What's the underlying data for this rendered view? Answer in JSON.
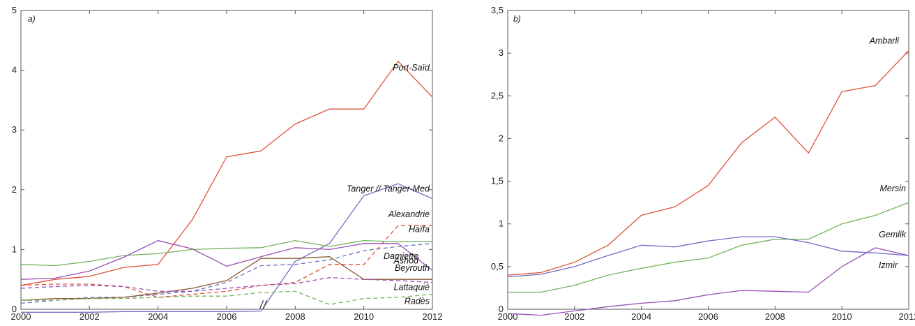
{
  "chart_data": [
    {
      "type": "line",
      "panel_label": "a)",
      "x": [
        2000,
        2001,
        2002,
        2003,
        2004,
        2005,
        2006,
        2007,
        2008,
        2009,
        2010,
        2011,
        2012
      ],
      "xticks": [
        2000,
        2002,
        2004,
        2006,
        2008,
        2010,
        2012
      ],
      "yticks": [
        "0",
        "1",
        "2",
        "3",
        "4",
        "5"
      ],
      "ytick_values": [
        0,
        1,
        2,
        3,
        4,
        5
      ],
      "xlim": [
        2000,
        2012
      ],
      "ylim": [
        0,
        5
      ],
      "series": [
        {
          "name": "Port-Saïd",
          "color": "#e0533a",
          "dash": "solid",
          "values": [
            0.4,
            0.5,
            0.55,
            0.7,
            0.75,
            1.5,
            2.55,
            2.65,
            3.1,
            3.35,
            3.35,
            4.15,
            3.55
          ]
        },
        {
          "name": "Tanger // Tanger-Med",
          "color": "#6f6cc4",
          "dash": "solid",
          "values": [
            -0.05,
            -0.05,
            -0.05,
            -0.04,
            -0.04,
            -0.04,
            -0.04,
            -0.03,
            0.8,
            1.1,
            1.9,
            2.1,
            1.85
          ]
        },
        {
          "name": "Alexandrie",
          "color": "#e0533a",
          "dash": "dashed",
          "values": [
            0.4,
            0.42,
            0.42,
            0.38,
            0.2,
            0.25,
            0.3,
            0.4,
            0.45,
            0.75,
            0.75,
            1.4,
            1.4
          ]
        },
        {
          "name": "Haïfa",
          "color": "#74b35e",
          "dash": "solid",
          "values": [
            0.75,
            0.73,
            0.8,
            0.9,
            0.93,
            1.0,
            1.02,
            1.03,
            1.15,
            1.05,
            1.15,
            1.13,
            1.13
          ]
        },
        {
          "name": "Ashod",
          "color": "#9a4fb4",
          "dash": "solid",
          "values": [
            0.5,
            0.52,
            0.64,
            0.87,
            1.15,
            1.01,
            0.72,
            0.88,
            1.03,
            1.0,
            1.1,
            1.1,
            0.65
          ]
        },
        {
          "name": "Damiette",
          "color": "#6f6cc4",
          "dash": "dashed",
          "values": [
            0.1,
            0.15,
            0.2,
            0.2,
            0.25,
            0.3,
            0.45,
            0.73,
            0.75,
            0.83,
            0.98,
            1.05,
            1.1
          ]
        },
        {
          "name": "Beyrouth",
          "color": "#8a5a32",
          "dash": "solid",
          "values": [
            0.15,
            0.18,
            0.18,
            0.2,
            0.27,
            0.35,
            0.48,
            0.85,
            0.85,
            0.88,
            0.5,
            0.5,
            0.5
          ]
        },
        {
          "name": "Lattaquié",
          "color": "#9a4fb4",
          "dash": "dashed",
          "values": [
            0.35,
            0.38,
            0.4,
            0.38,
            0.3,
            0.3,
            0.35,
            0.4,
            0.43,
            0.53,
            0.5,
            0.48,
            0.45
          ]
        },
        {
          "name": "Radès",
          "color": "#74b35e",
          "dash": "dashed",
          "values": [
            0.15,
            0.15,
            0.18,
            0.18,
            0.2,
            0.22,
            0.22,
            0.28,
            0.3,
            0.08,
            0.18,
            0.2,
            0.25
          ]
        }
      ]
    },
    {
      "type": "line",
      "panel_label": "b)",
      "x": [
        2000,
        2001,
        2002,
        2003,
        2004,
        2005,
        2006,
        2007,
        2008,
        2009,
        2010,
        2011,
        2012
      ],
      "xticks": [
        2000,
        2002,
        2004,
        2006,
        2008,
        2010,
        2012
      ],
      "yticks": [
        "0",
        "0,5",
        "1",
        "1,5",
        "2",
        "2,5",
        "3",
        "3,5"
      ],
      "ytick_values": [
        0,
        0.5,
        1,
        1.5,
        2,
        2.5,
        3,
        3.5
      ],
      "xlim": [
        2000,
        2012
      ],
      "ylim": [
        0,
        3.5
      ],
      "series": [
        {
          "name": "Ambarli",
          "color": "#e0533a",
          "dash": "solid",
          "values": [
            0.4,
            0.43,
            0.55,
            0.75,
            1.1,
            1.2,
            1.45,
            1.95,
            2.25,
            1.83,
            2.55,
            2.62,
            3.03
          ]
        },
        {
          "name": "Mersin",
          "color": "#74b35e",
          "dash": "solid",
          "values": [
            0.2,
            0.2,
            0.28,
            0.4,
            0.48,
            0.55,
            0.6,
            0.75,
            0.82,
            0.82,
            1.0,
            1.1,
            1.25
          ]
        },
        {
          "name": "Gemlik",
          "color": "#9a4fb4",
          "dash": "solid",
          "values": [
            -0.05,
            -0.07,
            -0.02,
            0.03,
            0.07,
            0.1,
            0.17,
            0.22,
            0.21,
            0.2,
            0.5,
            0.72,
            0.63
          ]
        },
        {
          "name": "Izmir",
          "color": "#6f6cc4",
          "dash": "solid",
          "values": [
            0.38,
            0.41,
            0.5,
            0.63,
            0.75,
            0.73,
            0.8,
            0.85,
            0.85,
            0.78,
            0.68,
            0.66,
            0.63
          ]
        }
      ]
    }
  ]
}
